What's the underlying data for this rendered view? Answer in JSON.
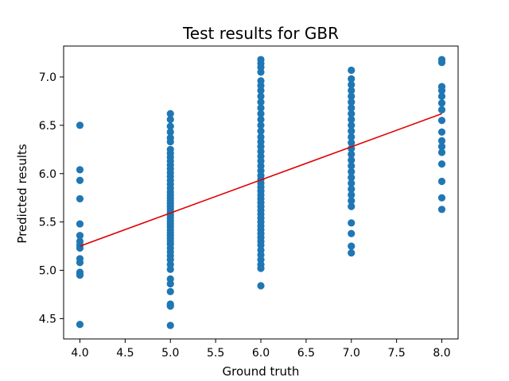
{
  "chart_data": {
    "type": "scatter",
    "title": "Test results for GBR",
    "xlabel": "Ground truth",
    "ylabel": "Predicted results",
    "xlim": [
      3.82,
      8.18
    ],
    "ylim": [
      4.29,
      7.32
    ],
    "xticks": [
      4.0,
      4.5,
      5.0,
      5.5,
      6.0,
      6.5,
      7.0,
      7.5,
      8.0
    ],
    "xtick_labels": [
      "4.0",
      "4.5",
      "5.0",
      "5.5",
      "6.0",
      "6.5",
      "7.0",
      "7.5",
      "8.0"
    ],
    "yticks": [
      4.5,
      5.0,
      5.5,
      6.0,
      6.5,
      7.0
    ],
    "ytick_labels": [
      "4.5",
      "5.0",
      "5.5",
      "6.0",
      "6.5",
      "7.0"
    ],
    "grid": false,
    "colors": {
      "points": "#1f77b4",
      "fit_line": "#e00000"
    },
    "series": [
      {
        "points": [
          [
            4.0,
            6.5
          ],
          [
            4.0,
            6.04
          ],
          [
            4.0,
            5.93
          ],
          [
            4.0,
            5.74
          ],
          [
            4.0,
            5.48
          ],
          [
            4.0,
            5.36
          ],
          [
            4.0,
            5.3
          ],
          [
            4.0,
            5.26
          ],
          [
            4.0,
            5.23
          ],
          [
            4.0,
            5.12
          ],
          [
            4.0,
            5.08
          ],
          [
            4.0,
            4.98
          ],
          [
            4.0,
            4.95
          ],
          [
            4.0,
            4.44
          ],
          [
            5.0,
            6.62
          ],
          [
            5.0,
            6.56
          ],
          [
            5.0,
            6.49
          ],
          [
            5.0,
            6.43
          ],
          [
            5.0,
            6.37
          ],
          [
            5.0,
            6.33
          ],
          [
            5.0,
            6.25
          ],
          [
            5.0,
            6.21
          ],
          [
            5.0,
            6.17
          ],
          [
            5.0,
            6.13
          ],
          [
            5.0,
            6.09
          ],
          [
            5.0,
            6.05
          ],
          [
            5.0,
            6.01
          ],
          [
            5.0,
            5.97
          ],
          [
            5.0,
            5.93
          ],
          [
            5.0,
            5.89
          ],
          [
            5.0,
            5.85
          ],
          [
            5.0,
            5.81
          ],
          [
            5.0,
            5.78
          ],
          [
            5.0,
            5.75
          ],
          [
            5.0,
            5.72
          ],
          [
            5.0,
            5.69
          ],
          [
            5.0,
            5.66
          ],
          [
            5.0,
            5.63
          ],
          [
            5.0,
            5.6
          ],
          [
            5.0,
            5.57
          ],
          [
            5.0,
            5.54
          ],
          [
            5.0,
            5.51
          ],
          [
            5.0,
            5.48
          ],
          [
            5.0,
            5.45
          ],
          [
            5.0,
            5.42
          ],
          [
            5.0,
            5.39
          ],
          [
            5.0,
            5.36
          ],
          [
            5.0,
            5.33
          ],
          [
            5.0,
            5.3
          ],
          [
            5.0,
            5.27
          ],
          [
            5.0,
            5.23
          ],
          [
            5.0,
            5.19
          ],
          [
            5.0,
            5.15
          ],
          [
            5.0,
            5.11
          ],
          [
            5.0,
            5.06
          ],
          [
            5.0,
            5.01
          ],
          [
            5.0,
            4.91
          ],
          [
            5.0,
            4.86
          ],
          [
            5.0,
            4.78
          ],
          [
            5.0,
            4.65
          ],
          [
            5.0,
            4.63
          ],
          [
            5.0,
            4.43
          ],
          [
            6.0,
            7.18
          ],
          [
            6.0,
            7.14
          ],
          [
            6.0,
            7.1
          ],
          [
            6.0,
            7.05
          ],
          [
            6.0,
            6.96
          ],
          [
            6.0,
            6.91
          ],
          [
            6.0,
            6.86
          ],
          [
            6.0,
            6.8
          ],
          [
            6.0,
            6.74
          ],
          [
            6.0,
            6.68
          ],
          [
            6.0,
            6.62
          ],
          [
            6.0,
            6.56
          ],
          [
            6.0,
            6.5
          ],
          [
            6.0,
            6.44
          ],
          [
            6.0,
            6.38
          ],
          [
            6.0,
            6.33
          ],
          [
            6.0,
            6.28
          ],
          [
            6.0,
            6.23
          ],
          [
            6.0,
            6.18
          ],
          [
            6.0,
            6.13
          ],
          [
            6.0,
            6.08
          ],
          [
            6.0,
            6.03
          ],
          [
            6.0,
            5.98
          ],
          [
            6.0,
            5.94
          ],
          [
            6.0,
            5.9
          ],
          [
            6.0,
            5.86
          ],
          [
            6.0,
            5.82
          ],
          [
            6.0,
            5.78
          ],
          [
            6.0,
            5.74
          ],
          [
            6.0,
            5.7
          ],
          [
            6.0,
            5.66
          ],
          [
            6.0,
            5.62
          ],
          [
            6.0,
            5.58
          ],
          [
            6.0,
            5.54
          ],
          [
            6.0,
            5.5
          ],
          [
            6.0,
            5.46
          ],
          [
            6.0,
            5.42
          ],
          [
            6.0,
            5.38
          ],
          [
            6.0,
            5.34
          ],
          [
            6.0,
            5.3
          ],
          [
            6.0,
            5.26
          ],
          [
            6.0,
            5.21
          ],
          [
            6.0,
            5.16
          ],
          [
            6.0,
            5.11
          ],
          [
            6.0,
            5.06
          ],
          [
            6.0,
            5.02
          ],
          [
            6.0,
            4.84
          ],
          [
            7.0,
            7.07
          ],
          [
            7.0,
            6.98
          ],
          [
            7.0,
            6.92
          ],
          [
            7.0,
            6.86
          ],
          [
            7.0,
            6.8
          ],
          [
            7.0,
            6.74
          ],
          [
            7.0,
            6.68
          ],
          [
            7.0,
            6.62
          ],
          [
            7.0,
            6.56
          ],
          [
            7.0,
            6.5
          ],
          [
            7.0,
            6.44
          ],
          [
            7.0,
            6.38
          ],
          [
            7.0,
            6.32
          ],
          [
            7.0,
            6.26
          ],
          [
            7.0,
            6.2
          ],
          [
            7.0,
            6.14
          ],
          [
            7.0,
            6.08
          ],
          [
            7.0,
            6.02
          ],
          [
            7.0,
            5.96
          ],
          [
            7.0,
            5.9
          ],
          [
            7.0,
            5.84
          ],
          [
            7.0,
            5.78
          ],
          [
            7.0,
            5.72
          ],
          [
            7.0,
            5.66
          ],
          [
            7.0,
            5.49
          ],
          [
            7.0,
            5.38
          ],
          [
            7.0,
            5.25
          ],
          [
            7.0,
            5.18
          ],
          [
            8.0,
            7.18
          ],
          [
            8.0,
            7.15
          ],
          [
            8.0,
            6.9
          ],
          [
            8.0,
            6.86
          ],
          [
            8.0,
            6.8
          ],
          [
            8.0,
            6.73
          ],
          [
            8.0,
            6.66
          ],
          [
            8.0,
            6.55
          ],
          [
            8.0,
            6.43
          ],
          [
            8.0,
            6.34
          ],
          [
            8.0,
            6.28
          ],
          [
            8.0,
            6.22
          ],
          [
            8.0,
            6.1
          ],
          [
            8.0,
            5.92
          ],
          [
            8.0,
            5.75
          ],
          [
            8.0,
            5.63
          ]
        ]
      }
    ],
    "fit_line": {
      "x": [
        4.0,
        8.0
      ],
      "y": [
        5.25,
        6.62
      ]
    }
  }
}
